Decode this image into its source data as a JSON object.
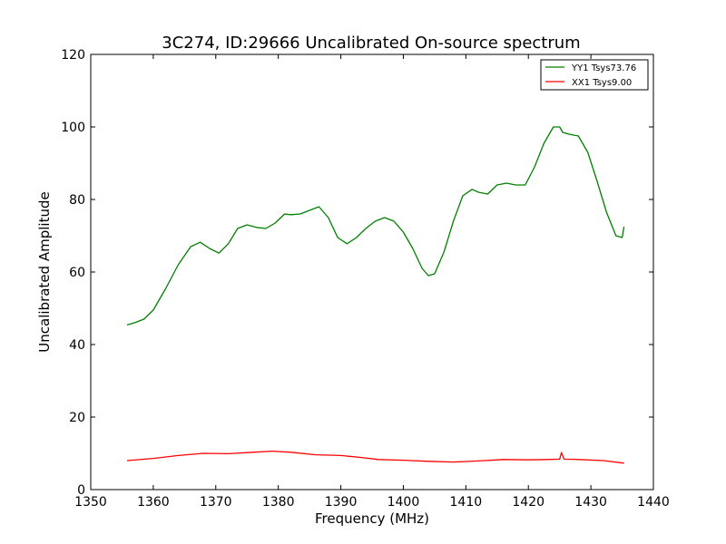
{
  "chart_data": {
    "type": "line",
    "title": "3C274, ID:29666 Uncalibrated On-source spectrum",
    "xlabel": "Frequency (MHz)",
    "ylabel": "Uncalibrated Amplitude",
    "xlim": [
      1350,
      1440
    ],
    "ylim": [
      0,
      120
    ],
    "xticks": [
      1350,
      1360,
      1370,
      1380,
      1390,
      1400,
      1410,
      1420,
      1430,
      1440
    ],
    "yticks": [
      0,
      20,
      40,
      60,
      80,
      100,
      120
    ],
    "grid": false,
    "legend_position": "top-right",
    "series": [
      {
        "name": "YY1 Tsys73.76",
        "color": "#008000",
        "x": [
          1355.8,
          1357,
          1358.5,
          1360,
          1362,
          1364,
          1366,
          1367.5,
          1369,
          1370.5,
          1372,
          1373.5,
          1375,
          1376.5,
          1378,
          1379.5,
          1381,
          1382,
          1383.5,
          1385,
          1386.5,
          1388,
          1389.5,
          1391,
          1392.5,
          1394,
          1395.5,
          1397,
          1398.5,
          1400,
          1401.5,
          1403,
          1404,
          1405,
          1406.5,
          1408,
          1409.5,
          1411,
          1412,
          1413.5,
          1415,
          1416.5,
          1418,
          1419.5,
          1421,
          1422.5,
          1424,
          1425,
          1425.5,
          1426.5,
          1428,
          1429.5,
          1431,
          1432.5,
          1434,
          1435,
          1435.3
        ],
        "values": [
          45.4,
          46.0,
          47.0,
          49.5,
          55.5,
          62.0,
          67.0,
          68.2,
          66.5,
          65.2,
          67.8,
          72.0,
          73.0,
          72.3,
          72.0,
          73.5,
          76.0,
          75.8,
          76.0,
          77.0,
          78.0,
          75.0,
          69.5,
          67.8,
          69.5,
          72.0,
          74.0,
          75.0,
          74.0,
          71.0,
          66.5,
          61.0,
          59.0,
          59.5,
          65.5,
          74.0,
          81.0,
          82.8,
          82.0,
          81.5,
          84.0,
          84.5,
          84.0,
          84.0,
          89.0,
          95.5,
          100.0,
          100.0,
          98.5,
          98.0,
          97.5,
          93.0,
          85.0,
          76.5,
          70.0,
          69.5,
          72.5
        ]
      },
      {
        "name": "XX1 Tsys9.00",
        "color": "#ff0000",
        "x": [
          1355.8,
          1360,
          1364,
          1368,
          1372,
          1376,
          1379,
          1382,
          1386,
          1390,
          1393,
          1396,
          1400,
          1404,
          1408,
          1412,
          1416,
          1420,
          1423,
          1425,
          1425.3,
          1425.7,
          1428,
          1432,
          1435.3
        ],
        "values": [
          8.0,
          8.6,
          9.4,
          10.0,
          9.9,
          10.3,
          10.6,
          10.3,
          9.6,
          9.4,
          8.9,
          8.3,
          8.1,
          7.8,
          7.6,
          7.9,
          8.3,
          8.2,
          8.3,
          8.4,
          10.2,
          8.4,
          8.3,
          8.0,
          7.3
        ]
      }
    ]
  }
}
